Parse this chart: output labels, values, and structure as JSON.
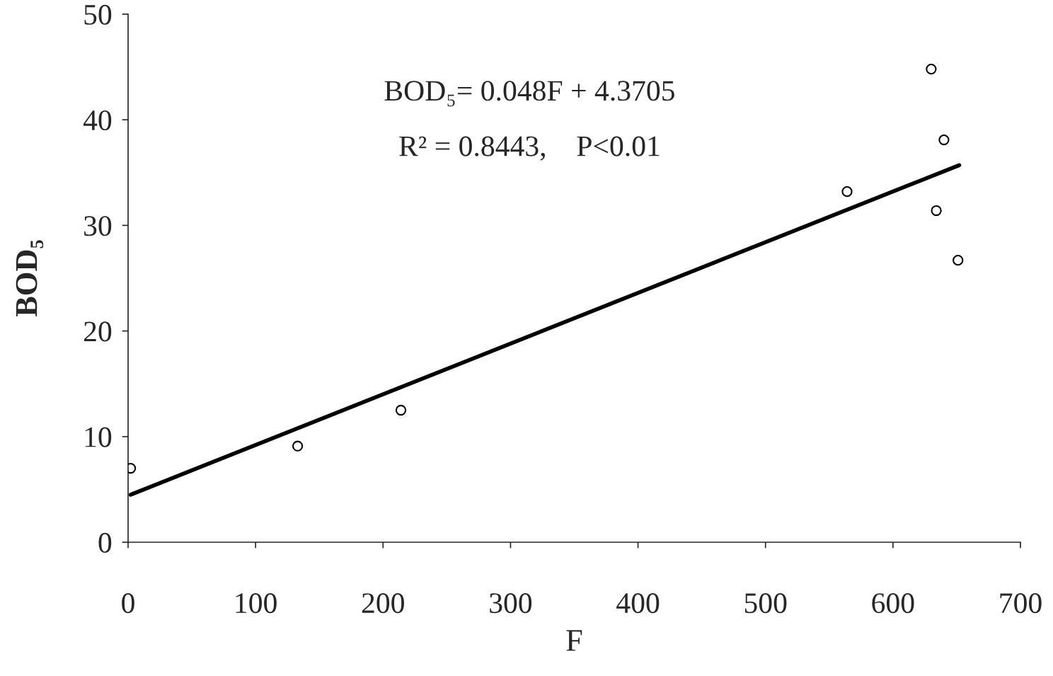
{
  "chart_data": {
    "type": "scatter",
    "xlabel": "F",
    "ylabel": "BOD₅",
    "annotations": [
      "BOD₅= 0.048F + 4.3705",
      "R² = 0.8443,    P<0.01"
    ],
    "series": [
      {
        "color": "#000000",
        "marker": "circle",
        "x": [
          2,
          133,
          214,
          564,
          630,
          634,
          640,
          651
        ],
        "values": [
          7.0,
          9.1,
          12.5,
          33.2,
          44.8,
          31.4,
          38.1,
          26.7
        ]
      },
      {
        "type": "line",
        "color": "#000000",
        "marker": "none",
        "line_style": "solid",
        "x": [
          2,
          652
        ],
        "values": [
          4.5,
          35.7
        ]
      }
    ],
    "xlim": [
      0,
      700
    ],
    "xticks": [
      0,
      100,
      200,
      300,
      400,
      500,
      600,
      700
    ],
    "ylim": [
      0,
      50
    ],
    "yticks": [
      0,
      10,
      20,
      30,
      40,
      50
    ],
    "grid": false,
    "legend": false
  }
}
